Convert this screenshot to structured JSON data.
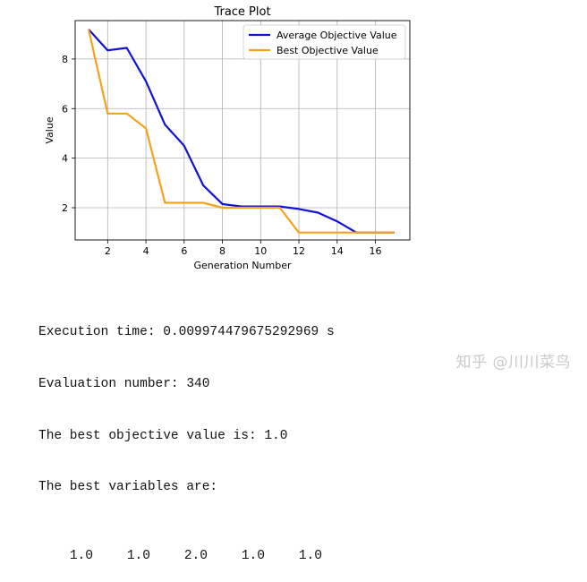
{
  "chart_data": {
    "type": "line",
    "title": "Trace Plot",
    "xlabel": "Generation Number",
    "ylabel": "Value",
    "xlim": [
      0.3,
      17.8
    ],
    "ylim": [
      0.7,
      9.55
    ],
    "xticks": [
      2,
      4,
      6,
      8,
      10,
      12,
      14,
      16
    ],
    "yticks": [
      2,
      4,
      6,
      8
    ],
    "grid": true,
    "legend_position": "top-right",
    "series": [
      {
        "name": "Average Objective Value",
        "color": "#1212d6",
        "x": [
          1,
          2,
          3,
          4,
          5,
          6,
          7,
          8,
          9,
          10,
          11,
          12,
          13,
          14,
          15,
          16,
          17
        ],
        "y": [
          9.2,
          8.35,
          8.45,
          7.1,
          5.35,
          4.5,
          2.9,
          2.15,
          2.05,
          2.05,
          2.05,
          1.95,
          1.8,
          1.45,
          1.0,
          1.0,
          1.0
        ]
      },
      {
        "name": "Best Objective Value",
        "color": "#f5a21b",
        "x": [
          1,
          2,
          3,
          4,
          5,
          6,
          7,
          8,
          9,
          10,
          11,
          12,
          13,
          14,
          15,
          16,
          17
        ],
        "y": [
          9.2,
          5.8,
          5.8,
          5.2,
          2.2,
          2.2,
          2.2,
          2.0,
          2.0,
          2.0,
          2.0,
          1.0,
          1.0,
          1.0,
          1.0,
          1.0,
          1.0
        ]
      }
    ]
  },
  "output": {
    "line1": "Execution time: 0.009974479675292969 s",
    "line2": "Evaluation number: 340",
    "line3": "The best objective value is: 1.0",
    "line4": "The best variables are:",
    "variables": [
      "1.0",
      "1.0",
      "2.0",
      "1.0",
      "1.0"
    ]
  },
  "watermark": "知乎 @川川菜鸟"
}
